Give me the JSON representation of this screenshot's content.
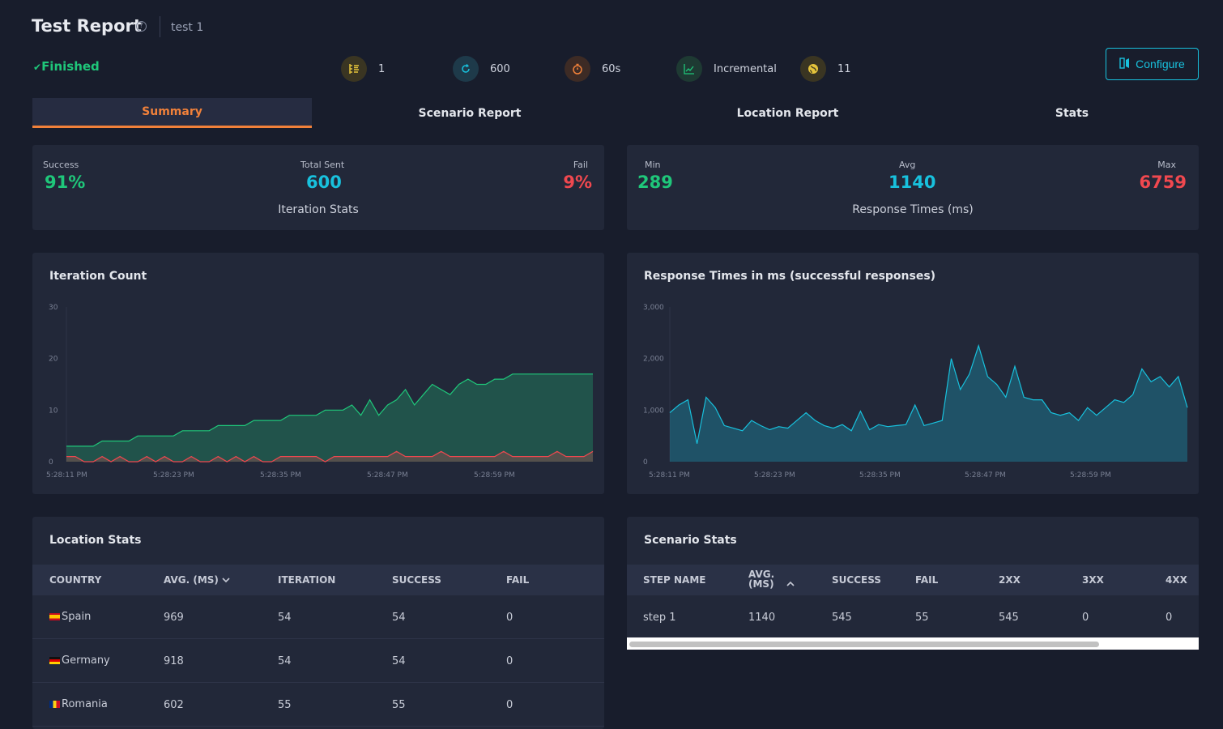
{
  "header": {
    "title": "Test Report",
    "help_icon": "help-circle-icon",
    "test_name": "test 1",
    "status": "Finished",
    "status_icon": "check-icon",
    "configure_label": "Configure",
    "configure_icon": "configure-icon"
  },
  "meta": [
    {
      "icon": "list-icon",
      "value": "1",
      "color": "#e4c33b"
    },
    {
      "icon": "refresh-icon",
      "value": "600",
      "color": "#18c1dd"
    },
    {
      "icon": "stopwatch-icon",
      "value": "60s",
      "color": "#f1813a"
    },
    {
      "icon": "trend-chart-icon",
      "value": "Incremental",
      "color": "#1fc77a"
    },
    {
      "icon": "globe-icon",
      "value": "11",
      "color": "#e4c33b"
    }
  ],
  "tabs": [
    {
      "label": "Summary",
      "active": true
    },
    {
      "label": "Scenario Report",
      "active": false
    },
    {
      "label": "Location Report",
      "active": false
    },
    {
      "label": "Stats",
      "active": false
    }
  ],
  "iteration_stats": {
    "success_label": "Success",
    "success_value": "91%",
    "total_label": "Total Sent",
    "total_value": "600",
    "fail_label": "Fail",
    "fail_value": "9%",
    "caption": "Iteration Stats"
  },
  "response_times": {
    "min_label": "Min",
    "min_value": "289",
    "avg_label": "Avg",
    "avg_value": "1140",
    "max_label": "Max",
    "max_value": "6759",
    "caption": "Response Times (ms)"
  },
  "colors": {
    "green": "#1fc77a",
    "cyan": "#18c1dd",
    "red": "#f0484f",
    "orange": "#f1813a",
    "bg": "#181d2c",
    "card": "#222839"
  },
  "chart_data": [
    {
      "type": "area",
      "title": "Iteration Count",
      "ylim": [
        0,
        30
      ],
      "yticks": [
        "30",
        "20",
        "10",
        "0"
      ],
      "xticks": [
        "5:28:11 PM",
        "5:28:23 PM",
        "5:28:35 PM",
        "5:28:47 PM",
        "5:28:59 PM"
      ],
      "grid": false,
      "series": [
        {
          "color": "#1fc77a",
          "values": [
            3,
            3,
            3,
            3,
            4,
            4,
            4,
            4,
            5,
            5,
            5,
            5,
            5,
            6,
            6,
            6,
            6,
            7,
            7,
            7,
            7,
            8,
            8,
            8,
            8,
            9,
            9,
            9,
            9,
            10,
            10,
            10,
            11,
            9,
            12,
            9,
            11,
            12,
            14,
            11,
            13,
            15,
            14,
            13,
            15,
            16,
            15,
            15,
            16,
            16,
            17,
            17,
            17,
            17,
            17,
            17,
            17,
            17,
            17,
            17
          ]
        },
        {
          "color": "#f0484f",
          "values": [
            1,
            1,
            0,
            0,
            1,
            0,
            1,
            0,
            0,
            1,
            0,
            1,
            0,
            0,
            1,
            0,
            0,
            1,
            0,
            1,
            0,
            1,
            0,
            0,
            1,
            1,
            1,
            1,
            1,
            0,
            1,
            1,
            1,
            1,
            1,
            1,
            1,
            2,
            1,
            1,
            1,
            1,
            2,
            1,
            1,
            1,
            1,
            1,
            1,
            2,
            1,
            1,
            1,
            1,
            1,
            2,
            1,
            1,
            1,
            2
          ]
        }
      ]
    },
    {
      "type": "area",
      "title": "Response Times in ms (successful responses)",
      "ylim": [
        0,
        3000
      ],
      "yticks": [
        "3,000",
        "2,000",
        "1,000",
        "0"
      ],
      "xticks": [
        "5:28:11 PM",
        "5:28:23 PM",
        "5:28:35 PM",
        "5:28:47 PM",
        "5:28:59 PM"
      ],
      "grid": false,
      "series": [
        {
          "color": "#18c1dd",
          "values": [
            950,
            1100,
            1200,
            350,
            1250,
            1050,
            700,
            650,
            600,
            800,
            700,
            620,
            680,
            650,
            800,
            950,
            800,
            700,
            650,
            720,
            600,
            980,
            620,
            720,
            680,
            700,
            720,
            1100,
            700,
            750,
            800,
            2000,
            1400,
            1700,
            2250,
            1650,
            1500,
            1250,
            1850,
            1250,
            1200,
            1200,
            950,
            900,
            950,
            800,
            1050,
            900,
            1050,
            1200,
            1150,
            1300,
            1800,
            1550,
            1650,
            1450,
            1650,
            1050
          ]
        }
      ]
    }
  ],
  "location_stats": {
    "title": "Location Stats",
    "columns": [
      "COUNTRY",
      "AVG. (MS)",
      "ITERATION",
      "SUCCESS",
      "FAIL"
    ],
    "sort_icon": "chevron-down-icon",
    "rows": [
      {
        "flag": "spain-flag-icon",
        "country": "Spain",
        "avg": "969",
        "iteration": "54",
        "success": "54",
        "fail": "0"
      },
      {
        "flag": "germany-flag-icon",
        "country": "Germany",
        "avg": "918",
        "iteration": "54",
        "success": "54",
        "fail": "0"
      },
      {
        "flag": "romania-flag-icon",
        "country": "Romania",
        "avg": "602",
        "iteration": "55",
        "success": "55",
        "fail": "0"
      }
    ]
  },
  "scenario_stats": {
    "title": "Scenario Stats",
    "columns": [
      "STEP NAME",
      "AVG. (MS)",
      "SUCCESS",
      "FAIL",
      "2XX",
      "3XX",
      "4XX"
    ],
    "sort_icon": "chevron-up-icon",
    "rows": [
      {
        "step": "step 1",
        "avg": "1140",
        "success": "545",
        "fail": "55",
        "c2xx": "545",
        "c3xx": "0",
        "c4xx": "0"
      }
    ]
  }
}
